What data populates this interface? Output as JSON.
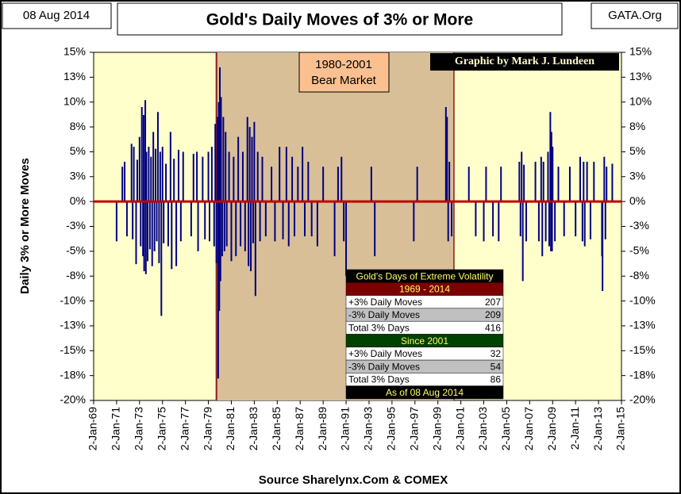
{
  "chart_data": {
    "type": "spike",
    "title": "Gold's Daily Moves of 3% or More",
    "date_label": "08 Aug 2014",
    "site_label": "GATA.Org",
    "credit": "Graphic by Mark J. Lundeen",
    "y_label": "Daily 3% or More Moves",
    "x_label": "Source Sharelynx.Com & COMEX",
    "shade_label": [
      "1980-2001",
      "Bear Market"
    ],
    "shade_x": [
      1979.7,
      2000.4
    ],
    "color": "#000080",
    "xlim": [
      1969,
      2015
    ],
    "ylim": [
      -20,
      15
    ],
    "xticks": [
      {
        "value": 1969,
        "label": "2-Jan-69"
      },
      {
        "value": 1971,
        "label": "2-Jan-71"
      },
      {
        "value": 1973,
        "label": "2-Jan-73"
      },
      {
        "value": 1975,
        "label": "2-Jan-75"
      },
      {
        "value": 1977,
        "label": "2-Jan-77"
      },
      {
        "value": 1979,
        "label": "2-Jan-79"
      },
      {
        "value": 1981,
        "label": "2-Jan-81"
      },
      {
        "value": 1983,
        "label": "2-Jan-83"
      },
      {
        "value": 1985,
        "label": "2-Jan-85"
      },
      {
        "value": 1987,
        "label": "2-Jan-87"
      },
      {
        "value": 1989,
        "label": "2-Jan-89"
      },
      {
        "value": 1991,
        "label": "2-Jan-91"
      },
      {
        "value": 1993,
        "label": "2-Jan-93"
      },
      {
        "value": 1995,
        "label": "2-Jan-95"
      },
      {
        "value": 1997,
        "label": "2-Jan-97"
      },
      {
        "value": 1999,
        "label": "2-Jan-99"
      },
      {
        "value": 2001,
        "label": "2-Jan-01"
      },
      {
        "value": 2003,
        "label": "2-Jan-03"
      },
      {
        "value": 2005,
        "label": "2-Jan-05"
      },
      {
        "value": 2007,
        "label": "2-Jan-07"
      },
      {
        "value": 2009,
        "label": "2-Jan-09"
      },
      {
        "value": 2011,
        "label": "2-Jan-11"
      },
      {
        "value": 2013,
        "label": "2-Jan-13"
      },
      {
        "value": 2015,
        "label": "2-Jan-15"
      }
    ],
    "yticks": [
      {
        "value": 15,
        "label": "15%"
      },
      {
        "value": 12.5,
        "label": "13%"
      },
      {
        "value": 10,
        "label": "10%"
      },
      {
        "value": 7.5,
        "label": "8%"
      },
      {
        "value": 5,
        "label": "5%"
      },
      {
        "value": 2.5,
        "label": "3%"
      },
      {
        "value": 0,
        "label": "0%"
      },
      {
        "value": -2.5,
        "label": "-3%"
      },
      {
        "value": -5,
        "label": "-5%"
      },
      {
        "value": -7.5,
        "label": "-8%"
      },
      {
        "value": -10,
        "label": "-10%"
      },
      {
        "value": -12.5,
        "label": "-13%"
      },
      {
        "value": -15,
        "label": "-15%"
      },
      {
        "value": -17.5,
        "label": "-18%"
      },
      {
        "value": -20,
        "label": "-20%"
      }
    ],
    "x": [
      1971.0,
      1971.5,
      1971.7,
      1971.9,
      1972.3,
      1972.4,
      1972.5,
      1972.7,
      1972.8,
      1973.0,
      1973.1,
      1973.2,
      1973.3,
      1973.35,
      1973.4,
      1973.5,
      1973.55,
      1973.6,
      1973.7,
      1973.8,
      1973.9,
      1974.0,
      1974.1,
      1974.2,
      1974.3,
      1974.4,
      1974.5,
      1974.6,
      1974.7,
      1974.8,
      1974.9,
      1975.0,
      1975.1,
      1975.3,
      1975.5,
      1975.7,
      1975.8,
      1976.0,
      1976.2,
      1976.4,
      1976.6,
      1976.8,
      1977.5,
      1977.7,
      1978.0,
      1978.1,
      1978.5,
      1978.7,
      1979.0,
      1979.1,
      1979.3,
      1979.5,
      1979.6,
      1979.7,
      1979.8,
      1979.85,
      1979.9,
      1979.95,
      1980.0,
      1980.05,
      1980.1,
      1980.2,
      1980.3,
      1980.4,
      1980.5,
      1980.6,
      1980.8,
      1981.0,
      1981.2,
      1981.4,
      1981.6,
      1981.8,
      1982.0,
      1982.2,
      1982.4,
      1982.5,
      1982.6,
      1982.7,
      1982.8,
      1982.9,
      1983.0,
      1983.1,
      1983.3,
      1983.5,
      1983.7,
      1984.0,
      1984.5,
      1984.8,
      1985.2,
      1985.5,
      1985.8,
      1986.0,
      1986.3,
      1986.5,
      1986.8,
      1987.2,
      1987.4,
      1987.7,
      1988.0,
      1988.5,
      1989.0,
      1990.0,
      1990.3,
      1990.6,
      1990.8,
      1991.0,
      1993.2,
      1993.5,
      1996.9,
      1997.2,
      1999.7,
      1999.8,
      1999.9,
      2000.0,
      2000.2,
      2001.7,
      2002.3,
      2003.0,
      2003.2,
      2003.8,
      2004.3,
      2004.5,
      2006.1,
      2006.2,
      2006.3,
      2006.4,
      2006.5,
      2006.7,
      2007.5,
      2007.8,
      2008.0,
      2008.1,
      2008.2,
      2008.4,
      2008.6,
      2008.7,
      2008.8,
      2008.85,
      2008.9,
      2008.95,
      2009.0,
      2009.2,
      2009.5,
      2010.0,
      2010.5,
      2011.0,
      2011.4,
      2011.6,
      2011.7,
      2011.8,
      2012.0,
      2012.3,
      2012.6,
      2013.3,
      2013.35,
      2013.5,
      2013.6,
      2013.7,
      2014.2
    ],
    "values": [
      -4.0,
      3.5,
      4,
      -3.5,
      5.8,
      -3.8,
      5.5,
      -6.3,
      4.2,
      6.5,
      -4.5,
      9.5,
      -5.5,
      8.7,
      -7,
      10.2,
      -7.3,
      5,
      -6,
      5.5,
      -4.8,
      4.5,
      -6.5,
      7,
      -5,
      5.3,
      -4,
      9,
      -6.2,
      5,
      -11.5,
      5.5,
      -4.2,
      3.8,
      -4.5,
      7,
      -6.8,
      4.3,
      -6.5,
      5.2,
      -4,
      5,
      -3.5,
      4.8,
      5,
      -5,
      4.5,
      -3.8,
      5,
      -4,
      5.5,
      -4.5,
      7.8,
      -6.2,
      8.5,
      -17.8,
      10,
      -11,
      13.5,
      -8,
      10.5,
      -5.5,
      8.5,
      -5,
      7,
      -4.5,
      5,
      -6,
      4.5,
      -5.5,
      6.5,
      -4.5,
      5,
      -5,
      8.5,
      -6.5,
      7.5,
      -7,
      6.5,
      -4.2,
      8,
      -9.5,
      5,
      -4,
      4.5,
      -3.5,
      3.5,
      -4,
      5.5,
      -3.8,
      5.5,
      -4.5,
      4.5,
      -3.5,
      3.5,
      5.5,
      -3.5,
      4,
      -3.5,
      -4.5,
      3.5,
      -5.5,
      3.5,
      4.5,
      -4,
      -7.5,
      3.5,
      -5.5,
      -4.0,
      3.5,
      9.5,
      8.5,
      -4,
      4,
      -3.5,
      3.5,
      -3.5,
      -4,
      3.5,
      -3.5,
      -4,
      3.5,
      4,
      -3.5,
      5,
      -8,
      3.7,
      -4,
      4,
      -4,
      4.5,
      -5.5,
      4,
      -4,
      5,
      -4.5,
      9,
      -5,
      7,
      -5,
      5.5,
      -4,
      3.5,
      -3.5,
      3.5,
      -3.5,
      4.5,
      -4,
      4,
      -4.5,
      4,
      -3.8,
      4,
      -5.5,
      -9,
      4.5,
      -3.8,
      3.5,
      3.8
    ],
    "volatility_table": {
      "title": "Gold's Days of Extreme Volatility",
      "sections": [
        {
          "heading": "1969 - 2014",
          "rows": [
            {
              "label": "+3% Daily Moves",
              "value": 207
            },
            {
              "label": "-3% Daily Moves",
              "value": 209
            },
            {
              "label": "Total 3% Days",
              "value": 416
            }
          ]
        },
        {
          "heading": "Since 2001",
          "rows": [
            {
              "label": "+3% Daily Moves",
              "value": 32
            },
            {
              "label": "-3% Daily Moves",
              "value": 54
            },
            {
              "label": "Total 3% Days",
              "value": 86
            }
          ]
        }
      ],
      "footer": "As of 08 Aug 2014"
    }
  }
}
